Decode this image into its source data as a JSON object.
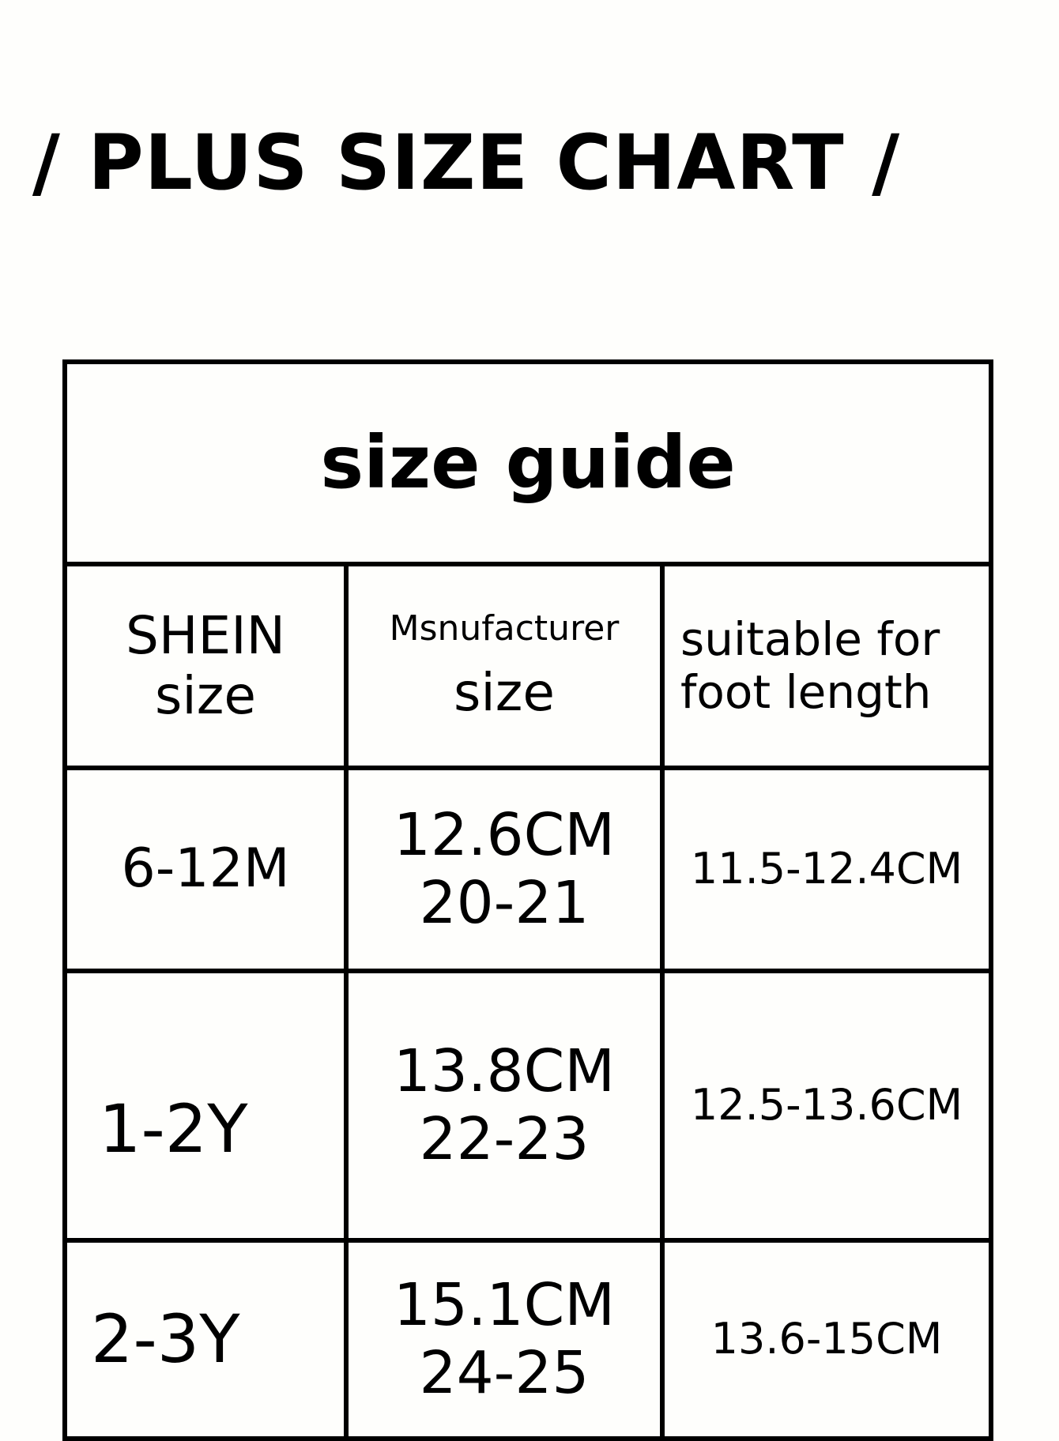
{
  "page_title": "/ PLUS SIZE CHART /",
  "table": {
    "caption": "size guide",
    "headers": [
      {
        "line1": "SHEIN",
        "line2": "size"
      },
      {
        "line1": "Msnufacturer",
        "line2": "size"
      },
      {
        "line1": "suitable for",
        "line2": "foot length"
      }
    ],
    "rows": [
      {
        "shein": "6-12M",
        "mfr_cm": "12.6CM",
        "mfr_size": "20-21",
        "foot": "11.5-12.4CM"
      },
      {
        "shein": "1-2Y",
        "mfr_cm": "13.8CM",
        "mfr_size": "22-23",
        "foot": "12.5-13.6CM"
      },
      {
        "shein": "2-3Y",
        "mfr_cm": "15.1CM",
        "mfr_size": "24-25",
        "foot": "13.6-15CM"
      }
    ]
  }
}
